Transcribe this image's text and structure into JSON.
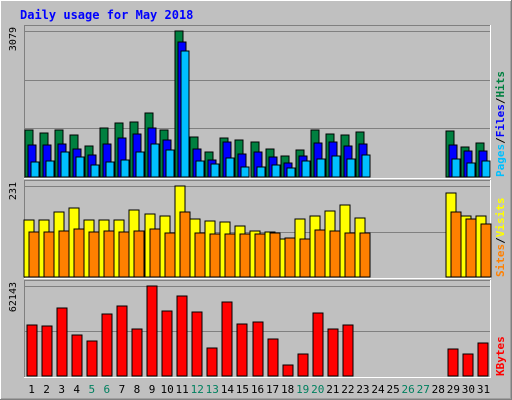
{
  "chart_data": {
    "type": "bar",
    "title": "Daily usage for May 2018",
    "days": [
      "1",
      "2",
      "3",
      "4",
      "5",
      "6",
      "7",
      "8",
      "9",
      "10",
      "11",
      "12",
      "13",
      "14",
      "15",
      "16",
      "17",
      "18",
      "19",
      "20",
      "21",
      "22",
      "23",
      "24",
      "25",
      "26",
      "27",
      "28",
      "29",
      "30",
      "31"
    ],
    "weekend_days": [
      5,
      6,
      12,
      13,
      19,
      20,
      26,
      27
    ],
    "panels": [
      {
        "id": "hits-files-pages",
        "ymax": 3079,
        "ymax_label": "3079",
        "legend": [
          "Pages",
          "/",
          "Files",
          "/",
          "Hits"
        ],
        "series": [
          {
            "name": "Hits",
            "color": "#008040",
            "values": [
              1000,
              920,
              1000,
              880,
              660,
              1030,
              1130,
              1160,
              1350,
              1000,
              3079,
              840,
              530,
              820,
              770,
              740,
              590,
              440,
              560,
              1000,
              900,
              880,
              940,
              null,
              null,
              null,
              null,
              null,
              980,
              640,
              720
            ]
          },
          {
            "name": "Files",
            "color": "#0000ff",
            "values": [
              680,
              680,
              700,
              590,
              460,
              700,
              830,
              900,
              1040,
              780,
              2850,
              590,
              360,
              740,
              490,
              520,
              420,
              300,
              450,
              720,
              740,
              660,
              690,
              null,
              null,
              null,
              null,
              null,
              680,
              540,
              540
            ]
          },
          {
            "name": "Pages",
            "color": "#00bfff",
            "values": [
              320,
              340,
              520,
              430,
              250,
              320,
              360,
              520,
              700,
              560,
              2650,
              330,
              270,
              400,
              210,
              220,
              250,
              200,
              330,
              380,
              450,
              380,
              460,
              null,
              null,
              null,
              null,
              null,
              380,
              300,
              330
            ]
          }
        ]
      },
      {
        "id": "visits-sites",
        "ymax": 231,
        "ymax_label": "231",
        "legend": [
          "Sites",
          "/",
          "Visits"
        ],
        "series": [
          {
            "name": "Visits",
            "color": "#ffff00",
            "values": [
              145,
              145,
              165,
              175,
              145,
              145,
              145,
              170,
              160,
              155,
              231,
              148,
              142,
              140,
              130,
              118,
              115,
              97,
              148,
              155,
              168,
              182,
              150,
              null,
              null,
              null,
              null,
              null,
              212,
              155,
              156
            ]
          },
          {
            "name": "Sites",
            "color": "#ff8000",
            "values": [
              115,
              115,
              118,
              122,
              115,
              118,
              115,
              118,
              122,
              112,
              165,
              112,
              108,
              110,
              108,
              108,
              112,
              98,
              96,
              120,
              118,
              112,
              112,
              null,
              null,
              null,
              null,
              null,
              165,
              148,
              135
            ]
          }
        ]
      },
      {
        "id": "kbytes",
        "ymax": 62143,
        "ymax_label": "62143",
        "legend": [
          "KBytes"
        ],
        "series": [
          {
            "name": "KBytes",
            "color": "#ff0000",
            "values": [
              35500,
              34800,
              47000,
              28500,
              24000,
              42500,
              48000,
              32200,
              62143,
              44800,
              55500,
              44000,
              19000,
              51000,
              36000,
              37500,
              25800,
              7600,
              15200,
              43200,
              32500,
              35000,
              null,
              null,
              null,
              null,
              null,
              null,
              18500,
              14900,
              22500
            ]
          }
        ]
      }
    ]
  }
}
